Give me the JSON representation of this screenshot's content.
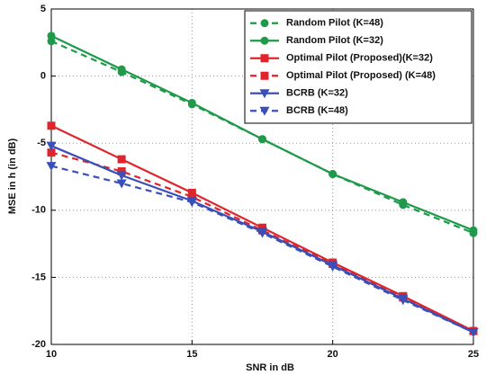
{
  "chart_data": {
    "type": "line",
    "xlabel": "SNR in dB",
    "ylabel": "MSE in h (in dB)",
    "x": [
      10,
      12.5,
      15,
      17.5,
      20,
      22.5,
      25
    ],
    "xlim": [
      10,
      25
    ],
    "xticks": [
      10,
      15,
      20,
      25
    ],
    "ylim": [
      -20,
      5
    ],
    "yticks": [
      -20,
      -15,
      -10,
      -5,
      0,
      5
    ],
    "grid": true,
    "legend": "upper right",
    "series": [
      {
        "name": "Random Pilot (K=48)",
        "color": "#1e9a4a",
        "linestyle": "dashed",
        "marker": "circle",
        "values": [
          2.6,
          0.3,
          -2.1,
          -4.7,
          -7.3,
          -9.6,
          -11.7
        ]
      },
      {
        "name": "Random Pilot (K=32)",
        "color": "#1e9a4a",
        "linestyle": "solid",
        "marker": "circle",
        "values": [
          3.0,
          0.5,
          -2.0,
          -4.7,
          -7.3,
          -9.4,
          -11.5
        ]
      },
      {
        "name": "Optimal Pilot (Proposed)(K=32)",
        "color": "#e0242b",
        "linestyle": "solid",
        "marker": "square",
        "values": [
          -3.7,
          -6.2,
          -8.7,
          -11.3,
          -13.9,
          -16.4,
          -19.0
        ]
      },
      {
        "name": "Optimal Pilot (Proposed) (K=48)",
        "color": "#e0242b",
        "linestyle": "dashed",
        "marker": "square",
        "values": [
          -5.7,
          -7.1,
          -9.0,
          -11.5,
          -14.0,
          -16.5,
          -19.0
        ]
      },
      {
        "name": "BCRB (K=32)",
        "color": "#3a4fb8",
        "linestyle": "solid",
        "marker": "triangle",
        "values": [
          -5.2,
          -7.4,
          -9.3,
          -11.6,
          -14.1,
          -16.6,
          -19.1
        ]
      },
      {
        "name": "BCRB (K=48)",
        "color": "#3a4fb8",
        "linestyle": "dashed",
        "marker": "triangle",
        "values": [
          -6.7,
          -8.0,
          -9.4,
          -11.7,
          -14.2,
          -16.7,
          -19.1
        ]
      }
    ]
  }
}
